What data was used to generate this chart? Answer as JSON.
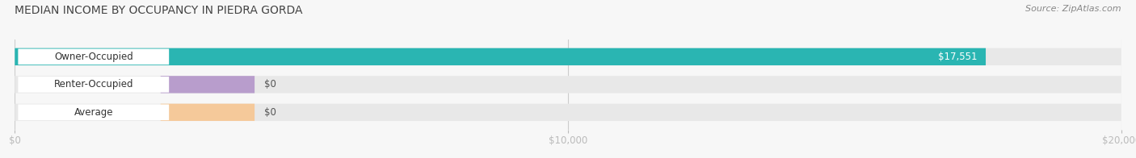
{
  "title": "MEDIAN INCOME BY OCCUPANCY IN PIEDRA GORDA",
  "source": "Source: ZipAtlas.com",
  "categories": [
    "Owner-Occupied",
    "Renter-Occupied",
    "Average"
  ],
  "values": [
    17551,
    0,
    0
  ],
  "bar_colors": [
    "#2ab5b2",
    "#b89dcc",
    "#f5c99a"
  ],
  "value_labels": [
    "$17,551",
    "$0",
    "$0"
  ],
  "xlim": [
    0,
    20000
  ],
  "xticks": [
    0,
    10000,
    20000
  ],
  "xtick_labels": [
    "$0",
    "$10,000",
    "$20,000"
  ],
  "background_color": "#f7f7f7",
  "bar_bg_color": "#e8e8e8",
  "title_fontsize": 10,
  "source_fontsize": 8,
  "label_fontsize": 8.5,
  "tick_fontsize": 8.5,
  "category_fontsize": 8.5,
  "bar_height": 0.62,
  "title_color": "#444444",
  "source_color": "#888888",
  "category_label_color": "#333333",
  "value_label_color_inside": "#ffffff",
  "value_label_color_outside": "#555555"
}
